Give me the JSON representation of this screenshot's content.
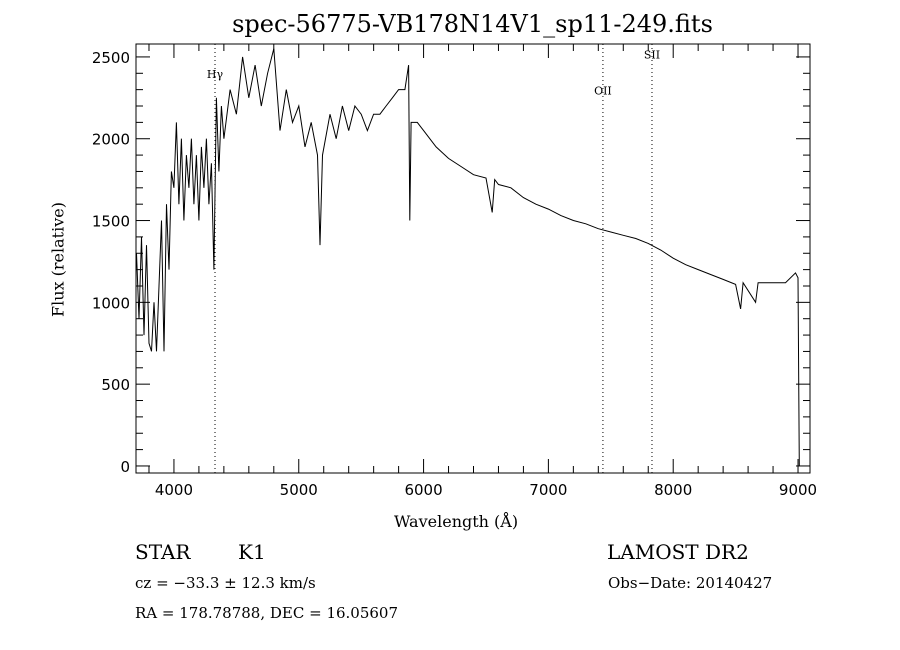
{
  "chart_data": {
    "type": "line",
    "title": "spec-56775-VB178N14V1_sp11-249.fits",
    "xlabel": "Wavelength (Å)",
    "ylabel": "Flux (relative)",
    "xlim": [
      3696,
      9096
    ],
    "ylim": [
      -43,
      2579
    ],
    "xticks": [
      4000,
      5000,
      6000,
      7000,
      8000,
      9000
    ],
    "yticks": [
      0,
      500,
      1000,
      1500,
      2000,
      2500
    ],
    "grid": false,
    "lines": [
      {
        "label": "Hγ",
        "x": 4329,
        "label_y": 2370
      },
      {
        "label": "OII",
        "x": 7437,
        "label_y": 2270
      },
      {
        "label": "SII",
        "x": 7830,
        "label_y": 2490
      }
    ],
    "series": [
      {
        "name": "flux",
        "x": [
          3700,
          3720,
          3740,
          3760,
          3780,
          3800,
          3820,
          3840,
          3860,
          3880,
          3900,
          3920,
          3940,
          3960,
          3980,
          4000,
          4020,
          4040,
          4060,
          4080,
          4100,
          4120,
          4140,
          4160,
          4180,
          4200,
          4220,
          4240,
          4260,
          4280,
          4300,
          4320,
          4340,
          4360,
          4380,
          4400,
          4450,
          4500,
          4550,
          4600,
          4650,
          4700,
          4750,
          4800,
          4850,
          4900,
          4950,
          5000,
          5050,
          5100,
          5150,
          5170,
          5190,
          5250,
          5300,
          5350,
          5400,
          5450,
          5500,
          5550,
          5600,
          5650,
          5700,
          5750,
          5800,
          5850,
          5880,
          5890,
          5900,
          5950,
          6000,
          6050,
          6100,
          6200,
          6300,
          6400,
          6500,
          6550,
          6570,
          6600,
          6700,
          6800,
          6900,
          7000,
          7100,
          7200,
          7300,
          7400,
          7500,
          7600,
          7700,
          7800,
          7900,
          8000,
          8100,
          8200,
          8300,
          8400,
          8500,
          8540,
          8560,
          8660,
          8680,
          8800,
          8900,
          8980,
          9000,
          9010
        ],
        "y": [
          1300,
          900,
          1400,
          800,
          1350,
          750,
          700,
          1000,
          700,
          1100,
          1500,
          700,
          1600,
          1200,
          1800,
          1700,
          2100,
          1600,
          2000,
          1500,
          1900,
          1700,
          2000,
          1600,
          1900,
          1500,
          1950,
          1700,
          2000,
          1600,
          1850,
          1200,
          2250,
          1800,
          2200,
          2000,
          2300,
          2150,
          2500,
          2250,
          2450,
          2200,
          2400,
          2550,
          2050,
          2300,
          2100,
          2200,
          1950,
          2100,
          1900,
          1350,
          1900,
          2150,
          2000,
          2200,
          2050,
          2200,
          2150,
          2050,
          2150,
          2150,
          2200,
          2250,
          2300,
          2300,
          2450,
          1500,
          2100,
          2100,
          2050,
          2000,
          1950,
          1880,
          1830,
          1780,
          1760,
          1550,
          1750,
          1720,
          1700,
          1640,
          1600,
          1570,
          1530,
          1500,
          1480,
          1450,
          1430,
          1410,
          1390,
          1360,
          1320,
          1270,
          1230,
          1200,
          1170,
          1140,
          1110,
          960,
          1120,
          1000,
          1120,
          1120,
          1120,
          1180,
          1150,
          0
        ]
      }
    ]
  },
  "info": {
    "class": "STAR",
    "subclass": "K1",
    "survey": "LAMOST DR2",
    "cz": "cz = −33.3 ± 12.3 km/s",
    "obs_date": "Obs−Date: 20140427",
    "coords": "RA = 178.78788, DEC =  16.05607"
  }
}
